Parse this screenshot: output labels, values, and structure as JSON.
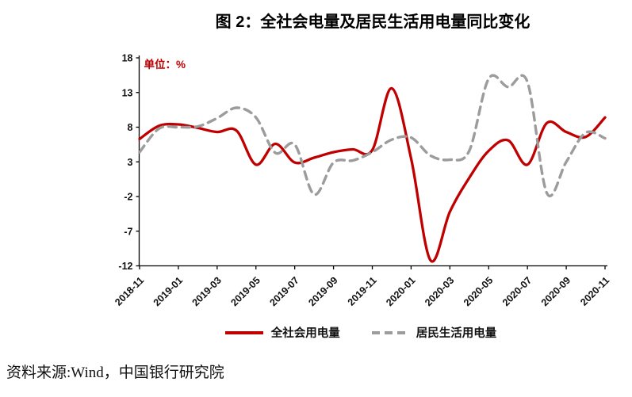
{
  "title": "图 2：全社会电量及居民生活用电量同比变化",
  "unit_label": "单位：%",
  "source_note": "资料来源:Wind，中国银行研究院",
  "colors": {
    "series_total": "#c00000",
    "series_residential": "#9c9c9c",
    "axis": "#000000",
    "unit_label": "#c00000"
  },
  "chart_data": {
    "type": "line",
    "x": [
      "2018-11",
      "2018-12",
      "2019-01",
      "2019-02",
      "2019-03",
      "2019-04",
      "2019-05",
      "2019-06",
      "2019-07",
      "2019-08",
      "2019-09",
      "2019-10",
      "2019-11",
      "2019-12",
      "2020-01",
      "2020-02",
      "2020-03",
      "2020-04",
      "2020-05",
      "2020-06",
      "2020-07",
      "2020-08",
      "2020-09",
      "2020-10",
      "2020-11"
    ],
    "x_tick_labels": [
      "2018-11",
      "2019-01",
      "2019-03",
      "2019-05",
      "2019-07",
      "2019-09",
      "2019-11",
      "2020-01",
      "2020-03",
      "2020-05",
      "2020-07",
      "2020-09",
      "2020-11"
    ],
    "ylim": [
      -12,
      18
    ],
    "yticks": [
      18,
      13,
      8,
      3,
      -2,
      -7,
      -12
    ],
    "grid": false,
    "legend_position": "bottom",
    "series": [
      {
        "name": "全社会用电量",
        "line_style": "solid",
        "color": "#c00000",
        "values": [
          6.3,
          8.2,
          8.4,
          7.9,
          7.3,
          7.5,
          2.6,
          5.6,
          2.9,
          3.6,
          4.4,
          4.8,
          4.7,
          13.6,
          3.5,
          -11.2,
          -4.2,
          0.7,
          4.6,
          6.1,
          2.6,
          8.6,
          7.3,
          6.6,
          9.4
        ]
      },
      {
        "name": "居民生活用电量",
        "line_style": "dashed",
        "color": "#9c9c9c",
        "values": [
          4.4,
          7.8,
          8.0,
          8.1,
          9.3,
          10.8,
          9.4,
          4.3,
          5.5,
          -1.7,
          2.9,
          3.2,
          4.4,
          6.2,
          6.5,
          3.9,
          3.3,
          4.6,
          15.0,
          13.8,
          14.5,
          -1.5,
          3.0,
          7.2,
          6.4
        ]
      }
    ]
  }
}
